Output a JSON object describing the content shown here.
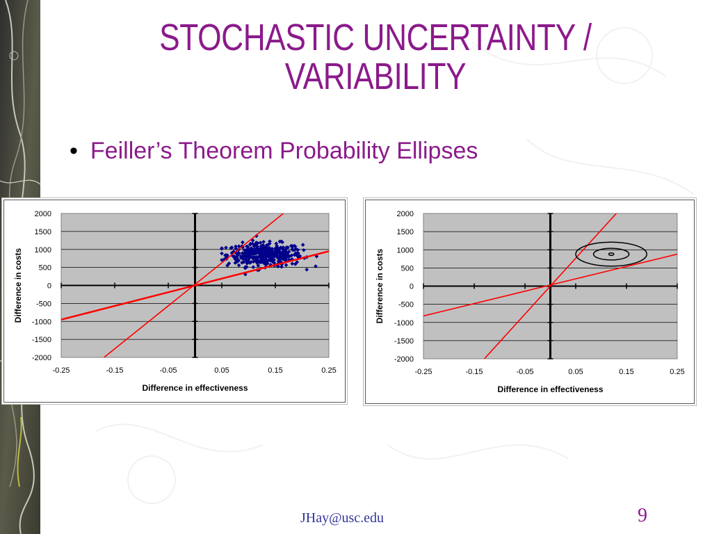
{
  "slide": {
    "title_line1": "STOCHASTIC UNCERTAINTY /",
    "title_line2": "VARIABILITY",
    "bullet": "Feiller’s Theorem Probability Ellipses",
    "footer_email": "JHay@usc.edu",
    "page_number": "9"
  },
  "colors": {
    "title": "#8b1a8b",
    "plot_bg": "#c0c0c0",
    "line": "#ff0000",
    "points": "#00008b",
    "ellipse": "#000000"
  },
  "chart_data": [
    {
      "type": "scatter",
      "xlabel": "Difference in effectiveness",
      "ylabel": "Difference in costs",
      "xlim": [
        -0.25,
        0.25
      ],
      "ylim": [
        -2000,
        2000
      ],
      "x_ticks": [
        "-0.25",
        "-0.15",
        "-0.05",
        "0.05",
        "0.15",
        "0.25"
      ],
      "y_ticks": [
        "2000",
        "1500",
        "1000",
        "500",
        "0",
        "-500",
        "-1000",
        "-1500",
        "-2000"
      ],
      "grid": true,
      "lines": [
        {
          "x": [
            -0.25,
            0.25
          ],
          "y": [
            -950,
            950
          ]
        },
        {
          "x": [
            -0.17,
            0.165
          ],
          "y": [
            -2000,
            2000
          ]
        }
      ],
      "scatter_cloud": {
        "center_x": 0.13,
        "center_y": 850,
        "spread_x": 0.035,
        "spread_y": 160,
        "count": 420,
        "min_x": 0.05,
        "max_x": 0.25
      }
    },
    {
      "type": "line",
      "xlabel": "Difference in effectiveness",
      "ylabel": "Difference in costs",
      "xlim": [
        -0.25,
        0.25
      ],
      "ylim": [
        -2000,
        2000
      ],
      "x_ticks": [
        "-0.25",
        "-0.15",
        "-0.05",
        "0.05",
        "0.15",
        "0.25"
      ],
      "y_ticks": [
        "2000",
        "1500",
        "1000",
        "500",
        "0",
        "-500",
        "-1000",
        "-1500",
        "-2000"
      ],
      "grid": true,
      "lines": [
        {
          "x": [
            -0.25,
            0.25
          ],
          "y": [
            -820,
            880
          ]
        },
        {
          "x": [
            -0.13,
            0.13
          ],
          "y": [
            -2000,
            2000
          ]
        }
      ],
      "ellipses": [
        {
          "cx": 0.12,
          "cy": 880,
          "rx": 0.005,
          "ry": 35
        },
        {
          "cx": 0.12,
          "cy": 880,
          "rx": 0.035,
          "ry": 160
        },
        {
          "cx": 0.12,
          "cy": 880,
          "rx": 0.07,
          "ry": 330
        }
      ]
    }
  ]
}
